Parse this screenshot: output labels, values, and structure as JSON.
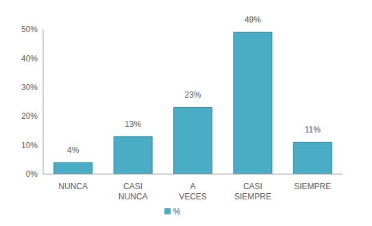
{
  "chart_data": {
    "type": "bar",
    "categories": [
      "NUNCA",
      "CASI NUNCA",
      "A VECES",
      "CASI SIEMPRE",
      "SIEMPRE"
    ],
    "series": [
      {
        "name": "%",
        "color": "#4bacc6",
        "values": [
          4,
          13,
          23,
          49,
          11
        ],
        "value_labels": [
          "4%",
          "13%",
          "23%",
          "49%",
          "11%"
        ]
      }
    ],
    "ylim": [
      0,
      50
    ],
    "yticks": [
      {
        "value": 0,
        "label": "0%"
      },
      {
        "value": 10,
        "label": "10%"
      },
      {
        "value": 20,
        "label": "20%"
      },
      {
        "value": 30,
        "label": "30%"
      },
      {
        "value": 40,
        "label": "40%"
      },
      {
        "value": 50,
        "label": "50%"
      }
    ],
    "grid": false,
    "legend": "bottom",
    "data_labels": true
  }
}
